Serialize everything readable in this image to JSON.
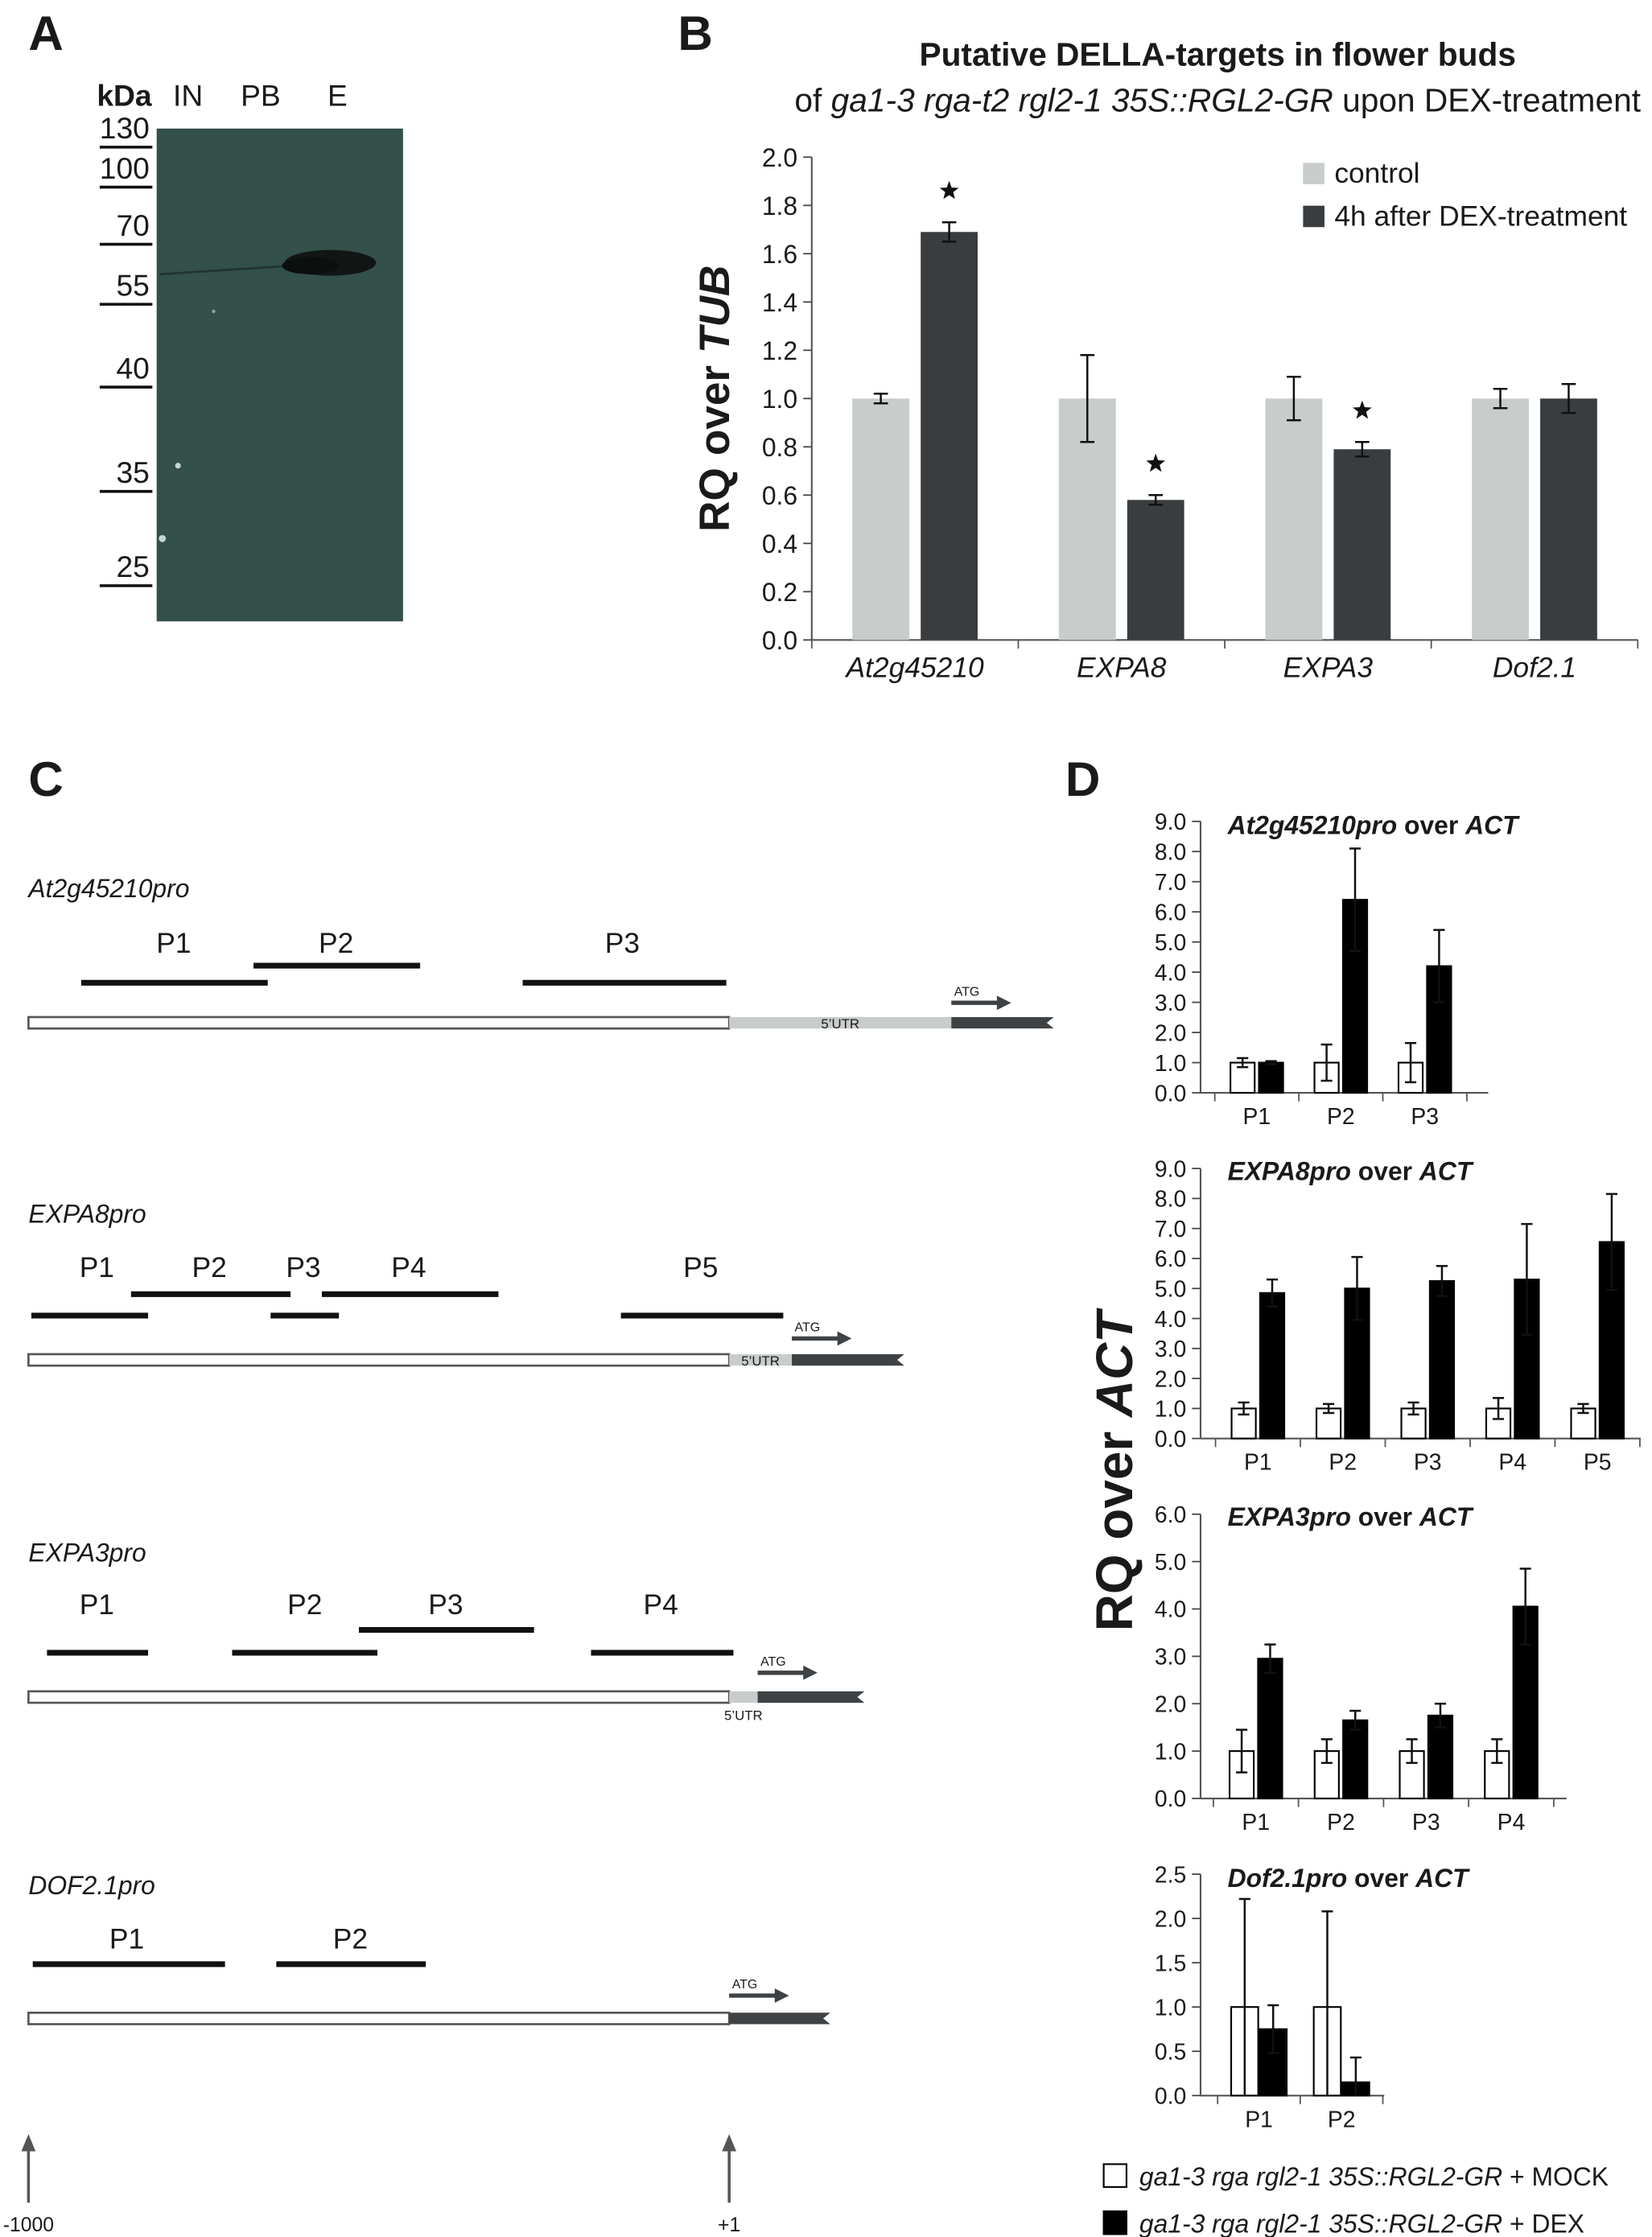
{
  "panel_labels": [
    "A",
    "B",
    "C",
    "D"
  ],
  "blot": {
    "unit": "kDa",
    "lanes": [
      "IN",
      "PB",
      "E"
    ],
    "markers": [
      130,
      100,
      70,
      55,
      40,
      35,
      25
    ]
  },
  "chart_data": [
    {
      "type": "bar",
      "title": "Putative DELLA-targets in flower buds",
      "subtitle": [
        {
          "text": "of ",
          "italic": false
        },
        {
          "text": "ga1-3 rga-t2 rgl2-1 35S::RGL2-GR",
          "italic": true
        },
        {
          "text": " upon DEX-treatment",
          "italic": false
        }
      ],
      "ylabel": [
        {
          "text": "RQ over ",
          "italic": false
        },
        {
          "text": "TUB",
          "italic": true
        }
      ],
      "categories": [
        "At2g45210",
        "EXPA8",
        "EXPA3",
        "Dof2.1"
      ],
      "categories_italic": true,
      "series": [
        {
          "name": "control",
          "color": "#c8ccca",
          "values": [
            1,
            1,
            1,
            1
          ],
          "errors": [
            0.02,
            0.18,
            0.09,
            0.04
          ]
        },
        {
          "name": "4h after DEX-treatment",
          "color": "#3a3d3f",
          "values": [
            1.69,
            0.58,
            0.79,
            1.0
          ],
          "errors": [
            0.04,
            0.02,
            0.03,
            0.06
          ],
          "significant": [
            true,
            true,
            true,
            false
          ]
        }
      ],
      "ylim": [
        0,
        2
      ],
      "yticks": [
        {
          "value": 0,
          "label": "0.0"
        },
        0.2,
        0.4,
        0.6,
        0.8,
        {
          "value": 1,
          "label": "1.0"
        },
        1.2,
        1.4,
        1.6,
        1.8,
        {
          "value": 2,
          "label": "2.0"
        }
      ],
      "legend": "top-right"
    },
    {
      "type": "bar",
      "title": [
        {
          "text": "At2g45210pro",
          "italic": true
        },
        {
          "text": " over ",
          "italic": false
        },
        {
          "text": "ACT",
          "italic": true
        }
      ],
      "categories": [
        "P1",
        "P2",
        "P3"
      ],
      "series": [
        {
          "color": "#ffffff",
          "values": [
            1,
            1,
            1
          ],
          "errors": [
            0.15,
            0.6,
            0.65
          ]
        },
        {
          "color": "#000000",
          "values": [
            1.0,
            6.4,
            4.2
          ],
          "errors": [
            0.05,
            1.7,
            1.2
          ]
        }
      ],
      "ylim": [
        0,
        9
      ],
      "yticks": [
        {
          "value": 0,
          "label": "0.0"
        },
        {
          "value": 1,
          "label": "1.0"
        },
        {
          "value": 2,
          "label": "2.0"
        },
        {
          "value": 3,
          "label": "3.0"
        },
        {
          "value": 4,
          "label": "4.0"
        },
        {
          "value": 5,
          "label": "5.0"
        },
        {
          "value": 6,
          "label": "6.0"
        },
        {
          "value": 7,
          "label": "7.0"
        },
        {
          "value": 8,
          "label": "8.0"
        },
        {
          "value": 9,
          "label": "9.0"
        }
      ]
    },
    {
      "type": "bar",
      "title": [
        {
          "text": "EXPA8pro",
          "italic": true
        },
        {
          "text": " over ",
          "italic": false
        },
        {
          "text": "ACT",
          "italic": true
        }
      ],
      "categories": [
        "P1",
        "P2",
        "P3",
        "P4",
        "P5"
      ],
      "series": [
        {
          "color": "#ffffff",
          "values": [
            1,
            1,
            1,
            1,
            1
          ],
          "errors": [
            0.2,
            0.15,
            0.2,
            0.35,
            0.15
          ]
        },
        {
          "color": "#000000",
          "values": [
            4.85,
            5.0,
            5.25,
            5.3,
            6.55
          ],
          "errors": [
            0.45,
            1.05,
            0.5,
            1.85,
            1.6
          ]
        }
      ],
      "ylim": [
        0,
        9
      ],
      "yticks": [
        {
          "value": 0,
          "label": "0.0"
        },
        {
          "value": 1,
          "label": "1.0"
        },
        {
          "value": 2,
          "label": "2.0"
        },
        {
          "value": 3,
          "label": "3.0"
        },
        {
          "value": 4,
          "label": "4.0"
        },
        {
          "value": 5,
          "label": "5.0"
        },
        {
          "value": 6,
          "label": "6.0"
        },
        {
          "value": 7,
          "label": "7.0"
        },
        {
          "value": 8,
          "label": "8.0"
        },
        {
          "value": 9,
          "label": "9.0"
        }
      ]
    },
    {
      "type": "bar",
      "title": [
        {
          "text": "EXPA3pro",
          "italic": true
        },
        {
          "text": " over ",
          "italic": false
        },
        {
          "text": "ACT",
          "italic": true
        }
      ],
      "categories": [
        "P1",
        "P2",
        "P3",
        "P4"
      ],
      "series": [
        {
          "color": "#ffffff",
          "values": [
            1,
            1,
            1,
            1
          ],
          "errors": [
            0.45,
            0.25,
            0.25,
            0.25
          ]
        },
        {
          "color": "#000000",
          "values": [
            2.95,
            1.65,
            1.75,
            4.05
          ],
          "errors": [
            0.3,
            0.2,
            0.25,
            0.8
          ]
        }
      ],
      "ylim": [
        0,
        6
      ],
      "yticks": [
        {
          "value": 0,
          "label": "0.0"
        },
        {
          "value": 1,
          "label": "1.0"
        },
        {
          "value": 2,
          "label": "2.0"
        },
        {
          "value": 3,
          "label": "3.0"
        },
        {
          "value": 4,
          "label": "4.0"
        },
        {
          "value": 5,
          "label": "5.0"
        },
        {
          "value": 6,
          "label": "6.0"
        }
      ]
    },
    {
      "type": "bar",
      "title": [
        {
          "text": "Dof2.1pro",
          "italic": true
        },
        {
          "text": " over ",
          "italic": false
        },
        {
          "text": "ACT",
          "italic": true
        }
      ],
      "categories": [
        "P1",
        "P2"
      ],
      "series": [
        {
          "color": "#ffffff",
          "values": [
            1,
            1
          ],
          "errors": [
            1.22,
            1.08
          ]
        },
        {
          "color": "#000000",
          "values": [
            0.75,
            0.15
          ],
          "errors": [
            0.27,
            0.28
          ]
        }
      ],
      "ylim": [
        0,
        2.5
      ],
      "yticks": [
        {
          "value": 0,
          "label": "0.0"
        },
        0.5,
        {
          "value": 1,
          "label": "1.0"
        },
        1.5,
        {
          "value": 2,
          "label": "2.0"
        },
        2.5
      ]
    }
  ],
  "d_ylabel": [
    {
      "text": "RQ over ",
      "italic": false
    },
    {
      "text": "ACT",
      "italic": true
    }
  ],
  "d_legend": [
    {
      "parts": [
        {
          "text": "ga1-3 rga rgl2-1 35S::RGL2-GR",
          "italic": true
        },
        {
          "text": " + MOCK",
          "italic": false
        }
      ],
      "color": "#ffffff"
    },
    {
      "parts": [
        {
          "text": "ga1-3 rga rgl2-1 35S::RGL2-GR",
          "italic": true
        },
        {
          "text": " + DEX",
          "italic": false
        }
      ],
      "color": "#000000"
    }
  ],
  "diagram": {
    "genes": [
      {
        "name": "At2g45210pro",
        "primers": [
          "P1",
          "P2",
          "P3"
        ],
        "utr": "5’UTR",
        "start_codon": "ATG"
      },
      {
        "name": "EXPA8pro",
        "primers": [
          "P1",
          "P2",
          "P3",
          "P4",
          "P5"
        ],
        "utr": "5’UTR",
        "start_codon": "ATG"
      },
      {
        "name": "EXPA3pro",
        "primers": [
          "P1",
          "P2",
          "P3",
          "P4"
        ],
        "utr": "5’UTR",
        "start_codon": "ATG"
      },
      {
        "name": "DOF2.1pro",
        "primers": [
          "P1",
          "P2"
        ],
        "start_codon": "ATG"
      }
    ],
    "scale": [
      "-1000",
      "+1"
    ]
  }
}
